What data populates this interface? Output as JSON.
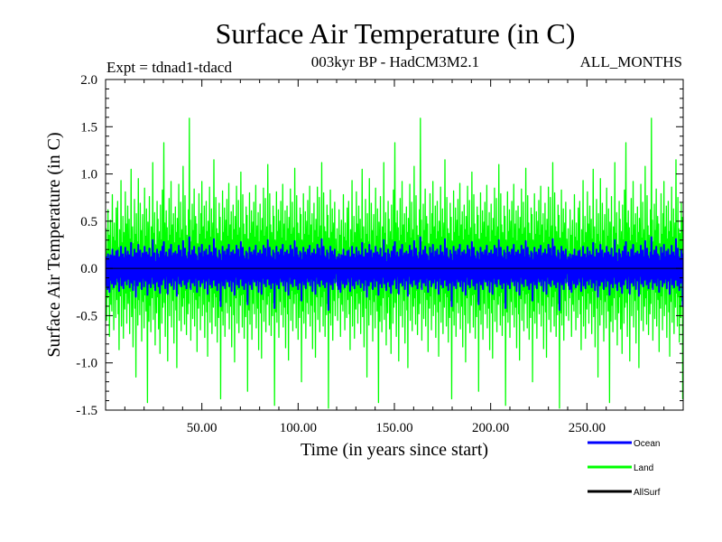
{
  "chart_data": {
    "type": "line",
    "title": "Surface Air Temperature (in C)",
    "subtitle": "003kyr BP - HadCM3M2.1",
    "expt_label": "Expt = tdnad1-tdacd",
    "months_label": "ALL_MONTHS",
    "xlabel": "Time (in years since start)",
    "ylabel": "Surface Air Temperature (in C)",
    "xlim": [
      0,
      300
    ],
    "ylim": [
      -1.5,
      2.0
    ],
    "x_ticks": [
      50,
      100,
      150,
      200,
      250
    ],
    "x_tick_labels": [
      "50.00",
      "100.00",
      "150.00",
      "200.00",
      "250.00"
    ],
    "y_ticks": [
      -1.5,
      -1.0,
      -0.5,
      0.0,
      0.5,
      1.0,
      1.5,
      2.0
    ],
    "y_tick_labels": [
      "-1.5",
      "-1.0",
      "-0.5",
      "0.0",
      "0.5",
      "1.0",
      "1.5",
      "2.0"
    ],
    "zero_line": 0.0,
    "series": [
      {
        "name": "Land",
        "color": "#00ff00",
        "description": "monthly land-mean anomaly, approx. values read from figure",
        "x_step": 0.25,
        "values": [
          -0.1,
          0.42,
          -0.55,
          0.18,
          -0.31,
          0.62,
          -0.08,
          0.35,
          -0.72,
          0.25,
          0.51,
          -0.38,
          0.12,
          -0.45,
          0.78,
          -0.22,
          0.33,
          -0.65,
          0.48,
          -0.15,
          0.29,
          -0.52,
          0.64,
          -0.33,
          0.05,
          0.71,
          -0.48,
          0.22,
          -0.86,
          0.41,
          0.15,
          -0.29,
          0.93,
          -0.61,
          0.27,
          -0.12,
          0.55,
          -0.74,
          0.38,
          0.02,
          -0.43,
          0.81,
          -0.26,
          0.47,
          -0.58,
          0.19,
          0.66,
          -0.37,
          -0.14,
          0.52,
          -0.69,
          0.31,
          -0.24,
          1.05,
          -0.51,
          0.09,
          0.44,
          -0.83,
          0.26,
          -0.18,
          0.73,
          -0.42,
          0.36,
          -1.15,
          0.58,
          -0.07,
          0.28,
          -0.6,
          0.95,
          -0.33,
          0.14,
          -0.49,
          0.69,
          -0.21,
          0.4,
          -0.77,
          0.23,
          0.57,
          -0.35,
          0.1,
          -0.63,
          0.85,
          -0.28,
          0.34,
          -0.45,
          0.63,
          -0.11,
          -1.42,
          0.49,
          0.18,
          -0.56,
          0.76,
          -0.39,
          0.21,
          -0.67,
          0.44,
          0.03,
          -0.31,
          1.12,
          -0.54,
          0.37,
          -0.2,
          0.59,
          -0.81,
          0.25,
          0.13,
          -0.47,
          0.71,
          -0.3,
          0.52,
          -0.64,
          0.16,
          0.39,
          -0.9,
          0.67,
          -0.13,
          0.3,
          -0.58,
          0.83,
          -0.41,
          0.2,
          1.33,
          -0.36,
          0.48,
          -0.72,
          0.11,
          0.61,
          -0.26,
          0.43,
          -0.98,
          0.29,
          -0.05,
          0.74,
          -0.5,
          0.35,
          -0.19,
          0.92,
          -0.62,
          0.17,
          0.46,
          -0.34,
          0.58,
          -0.79,
          0.27,
          -0.12,
          0.65,
          -0.44,
          0.38,
          -1.05,
          0.53,
          0.08,
          -0.27,
          0.89,
          -0.55,
          0.32,
          -0.16,
          0.7,
          -0.66,
          0.24,
          0.41,
          -0.4,
          1.08,
          -0.31,
          0.19,
          -0.59,
          0.77,
          -0.23,
          0.45,
          -0.7,
          0.35,
          0.12,
          -0.48,
          0.62,
          -0.37,
          1.59,
          -0.2,
          0.51,
          -0.76,
          0.28,
          -0.09,
          0.68,
          -0.53,
          0.4,
          -0.25,
          0.84,
          -0.61,
          0.15,
          0.55,
          -0.33,
          0.47,
          -0.88,
          0.26,
          0.06,
          -0.42,
          0.79,
          -0.29,
          0.36,
          -0.65,
          0.58,
          -0.17,
          0.92,
          -0.5,
          0.22,
          0.44,
          -0.38,
          0.66,
          -0.73,
          0.31,
          -0.14,
          0.71,
          -0.46,
          0.39,
          -0.93,
          0.5,
          0.1,
          -0.35,
          0.86,
          -0.57,
          0.33,
          -0.21,
          0.63,
          -0.69,
          0.27,
          0.48,
          -0.41,
          1.15,
          -0.26,
          0.2,
          -0.61,
          0.75,
          -0.3,
          0.42,
          -0.78,
          0.37,
          0.07,
          -0.52,
          0.69,
          -0.34,
          0.54,
          -1.38,
          0.29,
          0.16,
          -0.45,
          0.82,
          -0.6,
          0.38,
          -0.18,
          0.64,
          -0.72,
          0.25,
          0.51,
          -0.36,
          0.73,
          -0.47,
          0.34,
          -0.11,
          0.9,
          -0.64,
          0.2,
          0.46,
          -0.4,
          0.6,
          -0.83,
          0.3,
          -0.08,
          0.67,
          -0.49,
          0.41,
          -0.99,
          0.55,
          0.13,
          -0.31,
          0.87,
          -0.58,
          0.35,
          -0.22,
          0.72,
          -0.68,
          0.23,
          0.43,
          -0.39,
          1.02,
          -0.28,
          0.18,
          -0.62,
          0.78,
          -0.27,
          0.47,
          -0.74,
          0.36,
          0.09,
          -0.51,
          0.65,
          -0.35,
          0.56,
          -1.3,
          0.31,
          0.15,
          -0.44,
          0.8,
          -0.59,
          0.37,
          -0.2,
          0.61,
          -0.75,
          0.27,
          0.49,
          -0.37,
          0.7,
          -0.48,
          0.33,
          -0.13,
          0.88,
          -0.63,
          0.21,
          0.45,
          -0.42,
          0.59,
          -0.86,
          0.28,
          -0.1,
          0.68,
          -0.47,
          0.4,
          -0.95,
          0.53,
          0.12,
          -0.33,
          0.85,
          -0.56,
          0.34,
          -0.19,
          0.74,
          -0.67,
          0.24,
          0.44,
          -0.38,
          1.1,
          -0.29,
          0.17,
          -0.6,
          0.79,
          -0.25,
          0.46,
          -0.71,
          0.38,
          0.08,
          -0.5,
          0.66,
          -0.36,
          0.55,
          -1.45,
          0.3,
          0.14,
          -0.46,
          0.81,
          -0.57,
          0.39,
          -0.21,
          0.62,
          -0.73,
          0.26,
          0.5,
          -0.35,
          0.71,
          -0.49,
          0.32,
          -0.12,
          0.89,
          -0.62,
          0.22,
          0.47,
          -0.41,
          0.61,
          -0.84,
          0.29,
          -0.09,
          0.66,
          -0.48,
          0.42,
          -0.97,
          0.54,
          0.11,
          -0.32,
          0.84,
          -0.55,
          0.36,
          -0.23,
          0.7,
          -0.66,
          0.25,
          0.43,
          -0.37,
          1.06,
          -0.27,
          0.19,
          -0.63,
          0.77,
          -0.26,
          0.48,
          -0.75,
          0.37,
          0.1,
          -0.52,
          0.64,
          -0.34,
          0.57,
          -1.2,
          0.3,
          0.16,
          -0.45,
          0.79,
          -0.58,
          0.36,
          -0.2,
          0.6,
          -0.74,
          0.28,
          0.5,
          -0.36,
          0.72,
          -0.48,
          0.35,
          -0.12,
          0.87,
          -0.61,
          0.21,
          0.46,
          -0.39,
          0.58,
          -0.85,
          0.27,
          -0.11,
          0.69,
          -0.46,
          0.4,
          -0.94,
          0.52,
          0.13,
          -0.3,
          0.86,
          -0.54,
          0.33,
          -0.18,
          0.75,
          -0.67,
          0.23,
          0.45,
          -0.4,
          1.12,
          -0.3,
          0.18,
          -0.61,
          0.8,
          -0.24,
          0.44,
          -0.72,
          0.39,
          0.07,
          -0.49,
          0.67,
          -0.37,
          0.56,
          -1.48,
          0.32,
          0.15,
          -0.47,
          0.83,
          -0.6,
          0.38,
          -0.22,
          0.63,
          -0.76,
          0.27,
          0.48,
          -0.34,
          0.7,
          -0.5,
          0.31,
          -0.14
        ]
      },
      {
        "name": "Ocean",
        "color": "#0000ff",
        "description": "monthly ocean-mean anomaly, approx. values read from figure",
        "x_step": 0.25,
        "values": [
          -0.05,
          0.12,
          -0.18,
          0.08,
          -0.22,
          0.15,
          -0.02,
          0.1,
          -0.25,
          0.06,
          0.14,
          -0.12,
          0.03,
          -0.16,
          0.2,
          -0.08,
          0.11,
          -0.2,
          0.13,
          -0.06,
          0.09,
          -0.17,
          0.18,
          -0.1,
          0.02,
          0.19,
          -0.14,
          0.07,
          -0.24,
          0.12,
          0.05,
          -0.09,
          0.23,
          -0.18,
          0.08,
          -0.04,
          0.15,
          -0.21,
          0.11,
          0.01,
          -0.13,
          0.22,
          -0.08,
          0.13,
          -0.17,
          0.06,
          0.18,
          -0.11,
          -0.04,
          0.14,
          -0.2,
          0.09,
          -0.07,
          0.27,
          -0.15,
          0.03,
          0.12,
          -0.23,
          0.08,
          -0.05,
          0.2,
          -0.12,
          0.1,
          -0.3,
          0.16,
          -0.02,
          0.08,
          -0.18,
          0.25,
          -0.1,
          0.04,
          -0.14,
          0.19,
          -0.06,
          0.11,
          -0.22,
          0.07,
          0.16,
          -0.1,
          0.03,
          -0.19,
          0.23,
          -0.08,
          0.1,
          -0.13,
          0.17,
          -0.03,
          -0.28,
          0.14,
          0.05,
          -0.16,
          0.21,
          -0.11,
          0.06,
          -0.2,
          0.12,
          0.01,
          -0.09,
          0.3,
          -0.16,
          0.1,
          -0.06,
          0.16,
          -0.23,
          0.07,
          0.04,
          -0.14,
          0.2,
          -0.09,
          0.15,
          -0.19,
          0.05,
          0.11,
          -0.26,
          0.18,
          -0.04,
          0.09,
          -0.17,
          0.23,
          -0.12,
          0.06,
          0.28,
          -0.1,
          0.13,
          -0.21,
          0.03,
          0.17,
          -0.08,
          0.12,
          -0.27,
          0.08,
          -0.02,
          0.2,
          -0.15,
          0.1,
          -0.06,
          0.25,
          -0.18,
          0.05,
          0.13,
          -0.1,
          0.16,
          -0.22,
          0.08,
          -0.04,
          0.18,
          -0.13,
          0.11,
          -0.29,
          0.15,
          0.02,
          -0.08,
          0.24,
          -0.16,
          0.09,
          -0.05,
          0.19,
          -0.19,
          0.07,
          0.12,
          -0.12,
          0.29,
          -0.09,
          0.06,
          -0.17,
          0.21,
          -0.07,
          0.13,
          -0.21,
          0.1,
          0.04,
          -0.14,
          0.17,
          -0.11,
          0.33,
          -0.06,
          0.14,
          -0.22,
          0.08,
          -0.03,
          0.19,
          -0.15,
          0.11,
          -0.07,
          0.23,
          -0.18,
          0.05,
          0.15,
          -0.1,
          0.13,
          -0.25,
          0.08,
          0.02,
          -0.12,
          0.22,
          -0.09,
          0.1,
          -0.19,
          0.16,
          -0.05,
          0.25,
          -0.15,
          0.07,
          0.12,
          -0.11,
          0.18,
          -0.21,
          0.09,
          -0.04,
          0.2,
          -0.13,
          0.11,
          -0.27,
          0.14,
          0.03,
          -0.1,
          0.24,
          -0.17,
          0.1,
          -0.06,
          0.17,
          -0.2,
          0.08,
          0.13,
          -0.12,
          0.31,
          -0.08,
          0.06,
          -0.18,
          0.21,
          -0.09,
          0.12,
          -0.23,
          0.1,
          0.02,
          -0.15,
          0.19,
          -0.1,
          0.15,
          -0.4,
          0.08,
          0.05,
          -0.13,
          0.23,
          -0.18,
          0.11,
          -0.05,
          0.18,
          -0.21,
          0.07,
          0.14,
          -0.11,
          0.2,
          -0.14,
          0.1,
          -0.03,
          0.25,
          -0.19,
          0.06,
          0.13,
          -0.12,
          0.17,
          -0.24,
          0.09,
          -0.02,
          0.19,
          -0.14,
          0.12,
          -0.28,
          0.15,
          0.04,
          -0.09,
          0.24,
          -0.17,
          0.1,
          -0.07,
          0.2,
          -0.2,
          0.07,
          0.12,
          -0.11,
          0.28,
          -0.08,
          0.05,
          -0.18,
          0.22,
          -0.08,
          0.13,
          -0.22,
          0.1,
          0.03,
          -0.15,
          0.18,
          -0.1,
          0.16,
          -0.38,
          0.09,
          0.04,
          -0.13,
          0.22,
          -0.17,
          0.11,
          -0.06,
          0.17,
          -0.22,
          0.08,
          0.14,
          -0.11,
          0.19,
          -0.14,
          0.09,
          -0.04,
          0.24,
          -0.18,
          0.06,
          0.13,
          -0.12,
          0.16,
          -0.25,
          0.08,
          -0.03,
          0.19,
          -0.14,
          0.11,
          -0.27,
          0.15,
          0.04,
          -0.1,
          0.24,
          -0.16,
          0.1,
          -0.06,
          0.21,
          -0.19,
          0.07,
          0.12,
          -0.11,
          0.3,
          -0.09,
          0.05,
          -0.17,
          0.22,
          -0.07,
          0.13,
          -0.21,
          0.11,
          0.02,
          -0.15,
          0.19,
          -0.1,
          0.16,
          -0.42,
          0.09,
          0.04,
          -0.14,
          0.23,
          -0.17,
          0.11,
          -0.06,
          0.17,
          -0.21,
          0.08,
          0.14,
          -0.1,
          0.2,
          -0.14,
          0.09,
          -0.04,
          0.25,
          -0.18,
          0.06,
          0.13,
          -0.12,
          0.17,
          -0.24,
          0.08,
          -0.03,
          0.19,
          -0.14,
          0.12,
          -0.28,
          0.15,
          0.03,
          -0.09,
          0.24,
          -0.16,
          0.1,
          -0.07,
          0.2,
          -0.19,
          0.07,
          0.12,
          -0.11,
          0.29,
          -0.08,
          0.06,
          -0.18,
          0.22,
          -0.08,
          0.14,
          -0.22,
          0.11,
          0.03,
          -0.15,
          0.18,
          -0.1,
          0.16,
          -0.34,
          0.09,
          0.05,
          -0.13,
          0.22,
          -0.17,
          0.1,
          -0.06,
          0.17,
          -0.21,
          0.08,
          0.14,
          -0.1,
          0.2,
          -0.14,
          0.1,
          -0.04,
          0.24,
          -0.18,
          0.06,
          0.13,
          -0.11,
          0.16,
          -0.24,
          0.08,
          -0.03,
          0.2,
          -0.13,
          0.11,
          -0.27,
          0.15,
          0.04,
          -0.09,
          0.25,
          -0.16,
          0.09,
          -0.05,
          0.21,
          -0.19,
          0.07,
          0.13,
          -0.12,
          0.31,
          -0.09,
          0.05,
          -0.17,
          0.23,
          -0.07,
          0.13,
          -0.2,
          0.11,
          0.02,
          -0.14,
          0.19,
          -0.11,
          0.16,
          -0.44,
          0.09,
          0.04,
          -0.14,
          0.23,
          -0.17,
          0.11,
          -0.06,
          0.18,
          -0.22,
          0.08,
          0.14,
          -0.1,
          0.2,
          -0.15,
          0.09,
          -0.04
        ]
      },
      {
        "name": "AllSurf",
        "color": "#000000",
        "description": "legend entry only (line hidden beneath other series)",
        "x_step": 0.25,
        "values": []
      }
    ]
  }
}
